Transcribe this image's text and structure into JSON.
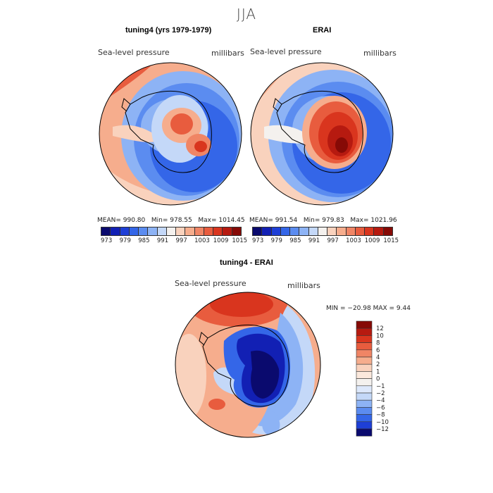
{
  "title": "JJA",
  "panels": [
    {
      "title": "tuning4 (yrs 1979-1979)",
      "variable": "Sea-level pressure",
      "units": "millibars",
      "stats": {
        "mean_label": "MEAN=",
        "mean": "990.80",
        "min_label": "Min=",
        "min": "978.55",
        "max_label": "Max=",
        "max": "1014.45"
      }
    },
    {
      "title": "ERAI",
      "variable": "Sea-level pressure",
      "units": "millibars",
      "stats": {
        "mean_label": "MEAN=",
        "mean": "991.54",
        "min_label": "Min=",
        "min": "979.83",
        "max_label": "Max=",
        "max": "1021.96"
      }
    },
    {
      "title": "tuning4 - ERAI",
      "variable": "Sea-level pressure",
      "units": "millibars",
      "stats_text": "MIN = −20.98 MAX =    9.44"
    }
  ],
  "colorbar_abs": {
    "ticks": [
      "973",
      "979",
      "985",
      "991",
      "997",
      "1003",
      "1009",
      "1015"
    ],
    "colors": [
      "#0a0a6e",
      "#1220b4",
      "#1e3fd6",
      "#3466e8",
      "#5b8cf0",
      "#8db3f5",
      "#c4d8f8",
      "#f4f1ee",
      "#f9d2bd",
      "#f6ad8d",
      "#f08565",
      "#e85c3e",
      "#d9351e",
      "#b61a10",
      "#860a06"
    ]
  },
  "colorbar_diff": {
    "ticks": [
      "12",
      "10",
      "8",
      "6",
      "4",
      "2",
      "1",
      "0",
      "−1",
      "−2",
      "−4",
      "−6",
      "−8",
      "−10",
      "−12"
    ],
    "colors": [
      "#860a06",
      "#b61a10",
      "#d9351e",
      "#e85c3e",
      "#f08565",
      "#f6ad8d",
      "#f9d2bd",
      "#fbe8dc",
      "#f4f1ee",
      "#dde8fb",
      "#c4d8f8",
      "#8db3f5",
      "#5b8cf0",
      "#3466e8",
      "#1e3fd6",
      "#0a0a6e"
    ]
  },
  "chart_data": [
    {
      "type": "heatmap",
      "title": "tuning4 (yrs 1979-1979)",
      "projection": "south-polar stereographic",
      "variable": "Sea-level pressure",
      "units": "millibars",
      "mean": 990.8,
      "min": 978.55,
      "max": 1014.45,
      "levels": [
        973,
        976,
        979,
        982,
        985,
        988,
        991,
        994,
        997,
        1000,
        1003,
        1006,
        1009,
        1012,
        1015
      ]
    },
    {
      "type": "heatmap",
      "title": "ERAI",
      "projection": "south-polar stereographic",
      "variable": "Sea-level pressure",
      "units": "millibars",
      "mean": 991.54,
      "min": 979.83,
      "max": 1021.96,
      "levels": [
        973,
        976,
        979,
        982,
        985,
        988,
        991,
        994,
        997,
        1000,
        1003,
        1006,
        1009,
        1012,
        1015
      ]
    },
    {
      "type": "heatmap",
      "title": "tuning4 - ERAI",
      "projection": "south-polar stereographic",
      "variable": "Sea-level pressure",
      "units": "millibars",
      "min": -20.98,
      "max": 9.44,
      "levels": [
        -12,
        -10,
        -8,
        -6,
        -4,
        -2,
        -1,
        0,
        1,
        2,
        4,
        6,
        8,
        10,
        12
      ]
    }
  ]
}
